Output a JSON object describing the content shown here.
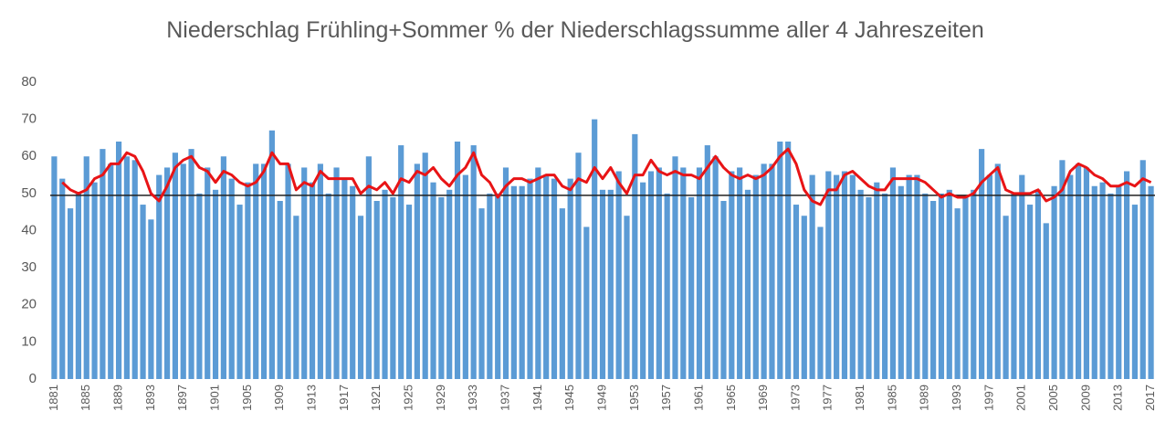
{
  "chart_data": {
    "type": "bar",
    "title": "Niederschlag Frühling+Sommer % der Niederschlagssumme aller 4 Jahreszeiten",
    "categories": [
      "1881",
      null,
      null,
      null,
      "1885",
      null,
      null,
      null,
      "1889",
      null,
      null,
      null,
      "1893",
      null,
      null,
      null,
      "1897",
      null,
      null,
      null,
      "1901",
      null,
      null,
      null,
      "1905",
      null,
      null,
      null,
      "1909",
      null,
      null,
      null,
      "1913",
      null,
      null,
      null,
      "1917",
      null,
      null,
      null,
      "1921",
      null,
      null,
      null,
      "1925",
      null,
      null,
      null,
      "1929",
      null,
      null,
      null,
      "1933",
      null,
      null,
      null,
      "1937",
      null,
      null,
      null,
      "1941",
      null,
      null,
      null,
      "1945",
      null,
      null,
      null,
      "1949",
      null,
      null,
      null,
      "1953",
      null,
      null,
      null,
      "1957",
      null,
      null,
      null,
      "1961",
      null,
      null,
      null,
      "1965",
      null,
      null,
      null,
      "1969",
      null,
      null,
      null,
      "1973",
      null,
      null,
      null,
      "1977",
      null,
      null,
      null,
      "1981",
      null,
      null,
      null,
      "1985",
      null,
      null,
      null,
      "1989",
      null,
      null,
      null,
      "1993",
      null,
      null,
      null,
      "1997",
      null,
      null,
      null,
      "2001",
      null,
      null,
      null,
      "2005",
      null,
      null,
      null,
      "2009",
      null,
      null,
      null,
      "2013",
      null,
      null,
      null,
      "2017"
    ],
    "series": [
      {
        "type": "bar",
        "color": "#5b9bd5",
        "values": [
          60,
          54,
          46,
          50,
          60,
          53,
          62,
          58,
          64,
          60,
          59,
          47,
          43,
          55,
          57,
          61,
          58,
          62,
          50,
          57,
          51,
          60,
          54,
          47,
          53,
          58,
          58,
          67,
          48,
          58,
          44,
          57,
          53,
          58,
          50,
          57,
          54,
          52,
          44,
          60,
          48,
          51,
          49,
          63,
          47,
          58,
          61,
          53,
          49,
          51,
          64,
          55,
          63,
          46,
          50,
          50,
          57,
          52,
          52,
          54,
          57,
          55,
          54,
          46,
          54,
          61,
          41,
          70,
          51,
          51,
          56,
          44,
          66,
          53,
          56,
          57,
          50,
          60,
          57,
          49,
          57,
          63,
          60,
          48,
          56,
          57,
          51,
          55,
          58,
          58,
          64,
          64,
          47,
          44,
          55,
          41,
          56,
          55,
          56,
          55,
          51,
          49,
          53,
          50,
          57,
          52,
          55,
          55,
          50,
          48,
          50,
          51,
          46,
          49,
          51,
          62,
          55,
          58,
          44,
          50,
          55,
          47,
          51,
          42,
          52,
          59,
          55,
          58,
          57,
          52,
          53,
          50,
          52,
          56,
          47,
          59,
          52
        ]
      },
      {
        "type": "line",
        "color": "#e81416",
        "values": [
          null,
          53,
          51,
          50,
          51,
          54,
          55,
          58,
          58,
          61,
          60,
          56,
          50,
          48,
          52,
          57,
          59,
          60,
          57,
          56,
          53,
          56,
          55,
          53,
          52,
          53,
          56,
          61,
          58,
          58,
          51,
          53,
          52,
          56,
          54,
          54,
          54,
          54,
          50,
          52,
          51,
          53,
          50,
          54,
          53,
          56,
          55,
          57,
          54,
          52,
          55,
          57,
          61,
          55,
          53,
          49,
          52,
          54,
          54,
          53,
          54,
          55,
          55,
          52,
          51,
          54,
          53,
          57,
          54,
          57,
          53,
          50,
          55,
          55,
          59,
          56,
          55,
          56,
          55,
          55,
          54,
          57,
          60,
          57,
          55,
          54,
          55,
          54,
          55,
          57,
          60,
          62,
          58,
          51,
          48,
          47,
          51,
          51,
          55,
          56,
          54,
          52,
          51,
          51,
          54,
          54,
          54,
          54,
          53,
          51,
          49,
          50,
          49,
          49,
          50,
          53,
          55,
          57,
          51,
          50,
          50,
          50,
          51,
          48,
          49,
          51,
          56,
          58,
          57,
          55,
          54,
          52,
          52,
          53,
          52,
          54,
          53
        ]
      }
    ],
    "hline": 49.5,
    "ylim": [
      0,
      80
    ],
    "yticks": [
      0,
      10,
      20,
      30,
      40,
      50,
      60,
      70,
      80
    ]
  }
}
